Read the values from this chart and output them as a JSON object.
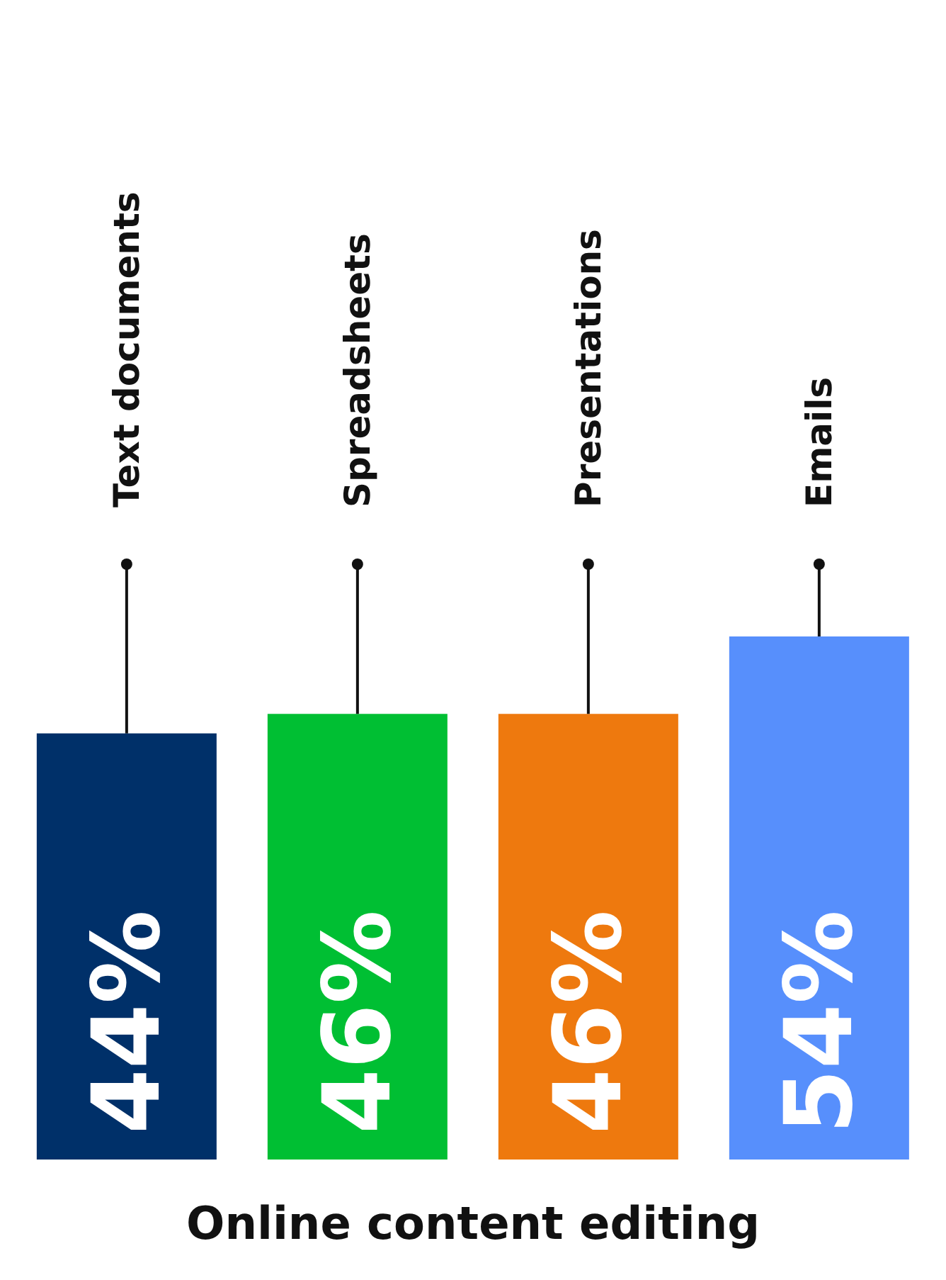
{
  "chart_data": {
    "type": "bar",
    "title": "Online content editing",
    "categories": [
      "Text documents",
      "Spreadsheets",
      "Presentations",
      "Emails"
    ],
    "values": [
      44,
      46,
      46,
      54
    ],
    "colors": [
      "#003069",
      "#00bf33",
      "#ee790e",
      "#578ffc"
    ],
    "value_labels": [
      "44%",
      "46%",
      "46%",
      "54%"
    ]
  }
}
